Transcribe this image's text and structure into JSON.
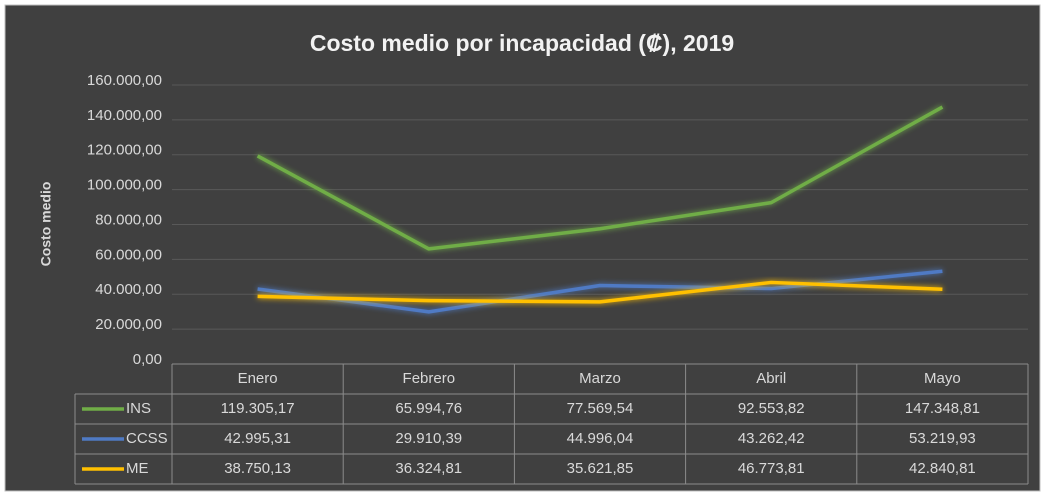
{
  "chart_data": {
    "type": "line",
    "title": "Costo medio por incapacidad (₡), 2019",
    "y_label": "Costo medio",
    "categories": [
      "Enero",
      "Febrero",
      "Marzo",
      "Abril",
      "Mayo"
    ],
    "series": [
      {
        "name": "INS",
        "color": "#70ad47",
        "values": [
          119305.17,
          65994.76,
          77569.54,
          92553.82,
          147348.81
        ],
        "value_labels": [
          "119.305,17",
          "65.994,76",
          "77.569,54",
          "92.553,82",
          "147.348,81"
        ]
      },
      {
        "name": "CCSS",
        "color": "#4f7ac4",
        "values": [
          42995.31,
          29910.39,
          44996.04,
          43262.42,
          53219.93
        ],
        "value_labels": [
          "42.995,31",
          "29.910,39",
          "44.996,04",
          "43.262,42",
          "53.219,93"
        ]
      },
      {
        "name": "ME",
        "color": "#ffc000",
        "values": [
          38750.13,
          36324.81,
          35621.85,
          46773.81,
          42840.81
        ],
        "value_labels": [
          "38.750,13",
          "36.324,81",
          "35.621,85",
          "46.773,81",
          "42.840,81"
        ]
      }
    ],
    "ylim": [
      0,
      160000
    ],
    "yticks": [
      {
        "value": 0,
        "label": "0,00"
      },
      {
        "value": 20000,
        "label": "20.000,00"
      },
      {
        "value": 40000,
        "label": "40.000,00"
      },
      {
        "value": 60000,
        "label": "60.000,00"
      },
      {
        "value": 80000,
        "label": "80.000,00"
      },
      {
        "value": 100000,
        "label": "100.000,00"
      },
      {
        "value": 120000,
        "label": "120.000,00"
      },
      {
        "value": 140000,
        "label": "140.000,00"
      },
      {
        "value": 160000,
        "label": "160.000,00"
      }
    ],
    "grid": true
  }
}
